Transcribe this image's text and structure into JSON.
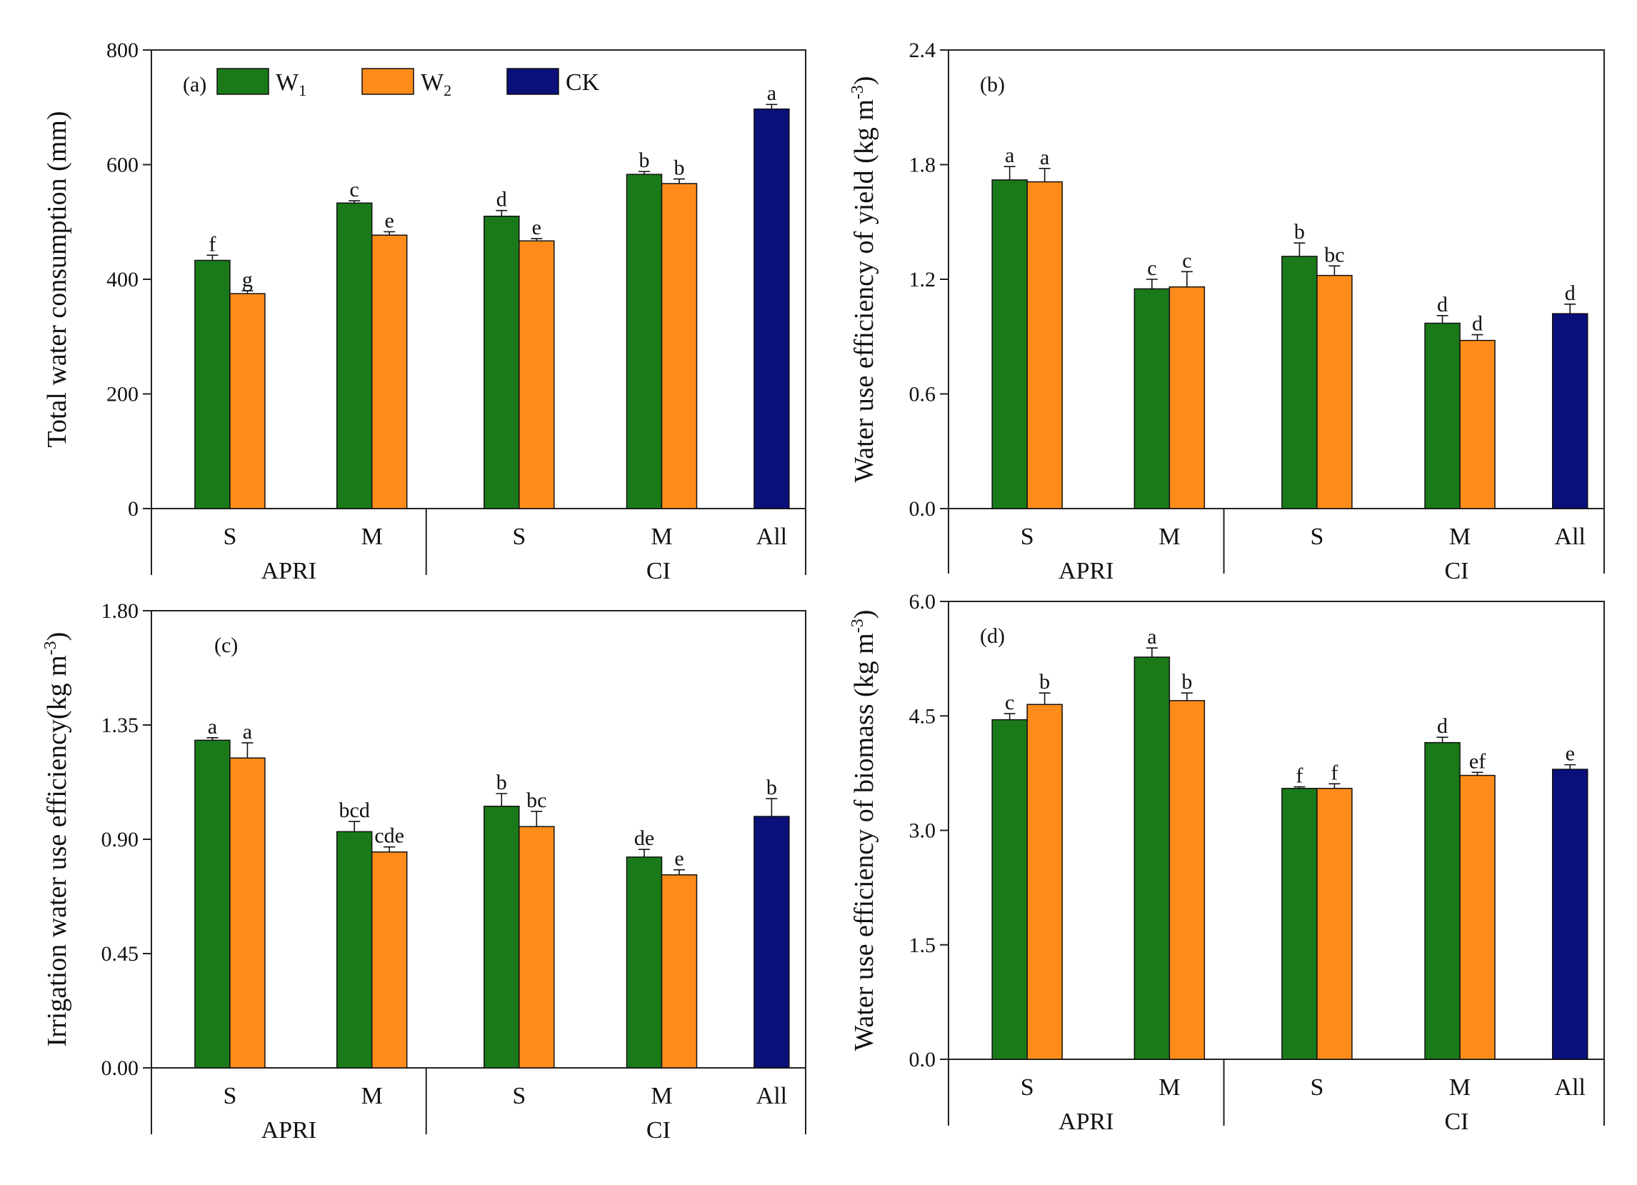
{
  "legend": [
    {
      "key": "W1",
      "label": "W",
      "sub": "1",
      "color": "#1a7a1a"
    },
    {
      "key": "W2",
      "label": "W",
      "sub": "2",
      "color": "#ff8c1a"
    },
    {
      "key": "CK",
      "label": "CK",
      "sub": "",
      "color": "#0a0f7a"
    }
  ],
  "chart_data": [
    {
      "id": "a",
      "type": "bar",
      "tag": "(a)",
      "ylabel": "Total water consumption (mm)",
      "ylabel_sup": "",
      "ylabel_tail": "",
      "ylim": [
        0,
        800
      ],
      "yticks": [
        "0",
        "200",
        "400",
        "600",
        "800"
      ],
      "categories": [
        "S",
        "M",
        "S",
        "M",
        "All"
      ],
      "groups": [
        {
          "label": "APRI",
          "categories": [
            0,
            1
          ]
        },
        {
          "label": "CI",
          "categories": [
            2,
            3,
            4
          ]
        }
      ],
      "bars": [
        {
          "cat": 0,
          "series": "W1",
          "value": 433,
          "err": 9,
          "sig": "f"
        },
        {
          "cat": 0,
          "series": "W2",
          "value": 375,
          "err": 5,
          "sig": "g"
        },
        {
          "cat": 1,
          "series": "W1",
          "value": 533,
          "err": 4,
          "sig": "c"
        },
        {
          "cat": 1,
          "series": "W2",
          "value": 477,
          "err": 6,
          "sig": "e"
        },
        {
          "cat": 2,
          "series": "W1",
          "value": 510,
          "err": 10,
          "sig": "d"
        },
        {
          "cat": 2,
          "series": "W2",
          "value": 467,
          "err": 4,
          "sig": "e"
        },
        {
          "cat": 3,
          "series": "W1",
          "value": 583,
          "err": 5,
          "sig": "b"
        },
        {
          "cat": 3,
          "series": "W2",
          "value": 567,
          "err": 8,
          "sig": "b"
        },
        {
          "cat": 4,
          "series": "CK",
          "value": 697,
          "err": 8,
          "sig": "a"
        }
      ],
      "show_legend": true
    },
    {
      "id": "b",
      "type": "bar",
      "tag": "(b)",
      "ylabel": "Water use efficiency of yield (kg m",
      "ylabel_sup": "-3",
      "ylabel_tail": ")",
      "ylim": [
        0,
        2.4
      ],
      "yticks": [
        "0.0",
        "0.6",
        "1.2",
        "1.8",
        "2.4"
      ],
      "categories": [
        "S",
        "M",
        "S",
        "M",
        "All"
      ],
      "groups": [
        {
          "label": "APRI",
          "categories": [
            0,
            1
          ]
        },
        {
          "label": "CI",
          "categories": [
            2,
            3,
            4
          ]
        }
      ],
      "bars": [
        {
          "cat": 0,
          "series": "W1",
          "value": 1.72,
          "err": 0.07,
          "sig": "a"
        },
        {
          "cat": 0,
          "series": "W2",
          "value": 1.71,
          "err": 0.07,
          "sig": "a"
        },
        {
          "cat": 1,
          "series": "W1",
          "value": 1.15,
          "err": 0.05,
          "sig": "c"
        },
        {
          "cat": 1,
          "series": "W2",
          "value": 1.16,
          "err": 0.08,
          "sig": "c"
        },
        {
          "cat": 2,
          "series": "W1",
          "value": 1.32,
          "err": 0.07,
          "sig": "b"
        },
        {
          "cat": 2,
          "series": "W2",
          "value": 1.22,
          "err": 0.05,
          "sig": "bc"
        },
        {
          "cat": 3,
          "series": "W1",
          "value": 0.97,
          "err": 0.04,
          "sig": "d"
        },
        {
          "cat": 3,
          "series": "W2",
          "value": 0.88,
          "err": 0.03,
          "sig": "d"
        },
        {
          "cat": 4,
          "series": "CK",
          "value": 1.02,
          "err": 0.05,
          "sig": "d"
        }
      ],
      "show_legend": false
    },
    {
      "id": "c",
      "type": "bar",
      "tag": "(c)",
      "ylabel": "Irrigation water use efficiency(kg m",
      "ylabel_sup": "-3",
      "ylabel_tail": ")",
      "ylim": [
        0,
        1.8
      ],
      "yticks": [
        "0.00",
        "0.45",
        "0.90",
        "1.35",
        "1.80"
      ],
      "categories": [
        "S",
        "M",
        "S",
        "M",
        "All"
      ],
      "groups": [
        {
          "label": "APRI",
          "categories": [
            0,
            1
          ]
        },
        {
          "label": "CI",
          "categories": [
            2,
            3,
            4
          ]
        }
      ],
      "bars": [
        {
          "cat": 0,
          "series": "W1",
          "value": 1.29,
          "err": 0.01,
          "sig": "a"
        },
        {
          "cat": 0,
          "series": "W2",
          "value": 1.22,
          "err": 0.06,
          "sig": "a"
        },
        {
          "cat": 1,
          "series": "W1",
          "value": 0.93,
          "err": 0.04,
          "sig": "bcd"
        },
        {
          "cat": 1,
          "series": "W2",
          "value": 0.85,
          "err": 0.02,
          "sig": "cde"
        },
        {
          "cat": 2,
          "series": "W1",
          "value": 1.03,
          "err": 0.05,
          "sig": "b"
        },
        {
          "cat": 2,
          "series": "W2",
          "value": 0.95,
          "err": 0.06,
          "sig": "bc"
        },
        {
          "cat": 3,
          "series": "W1",
          "value": 0.83,
          "err": 0.03,
          "sig": "de"
        },
        {
          "cat": 3,
          "series": "W2",
          "value": 0.76,
          "err": 0.02,
          "sig": "e"
        },
        {
          "cat": 4,
          "series": "CK",
          "value": 0.99,
          "err": 0.07,
          "sig": "b"
        }
      ],
      "show_legend": false
    },
    {
      "id": "d",
      "type": "bar",
      "tag": "(d)",
      "ylabel": "Water use efficiency of biomass (kg m",
      "ylabel_sup": "-3",
      "ylabel_tail": ")",
      "ylim": [
        0,
        6.0
      ],
      "yticks": [
        "0.0",
        "1.5",
        "3.0",
        "4.5",
        "6.0"
      ],
      "categories": [
        "S",
        "M",
        "S",
        "M",
        "All"
      ],
      "groups": [
        {
          "label": "APRI",
          "categories": [
            0,
            1
          ]
        },
        {
          "label": "CI",
          "categories": [
            2,
            3,
            4
          ]
        }
      ],
      "bars": [
        {
          "cat": 0,
          "series": "W1",
          "value": 4.45,
          "err": 0.08,
          "sig": "c"
        },
        {
          "cat": 0,
          "series": "W2",
          "value": 4.65,
          "err": 0.15,
          "sig": "b"
        },
        {
          "cat": 1,
          "series": "W1",
          "value": 5.27,
          "err": 0.12,
          "sig": "a"
        },
        {
          "cat": 1,
          "series": "W2",
          "value": 4.7,
          "err": 0.1,
          "sig": "b"
        },
        {
          "cat": 2,
          "series": "W1",
          "value": 3.55,
          "err": 0.02,
          "sig": "f"
        },
        {
          "cat": 2,
          "series": "W2",
          "value": 3.55,
          "err": 0.06,
          "sig": "f"
        },
        {
          "cat": 3,
          "series": "W1",
          "value": 4.15,
          "err": 0.07,
          "sig": "d"
        },
        {
          "cat": 3,
          "series": "W2",
          "value": 3.72,
          "err": 0.04,
          "sig": "ef"
        },
        {
          "cat": 4,
          "series": "CK",
          "value": 3.8,
          "err": 0.06,
          "sig": "e"
        }
      ],
      "show_legend": false
    }
  ]
}
